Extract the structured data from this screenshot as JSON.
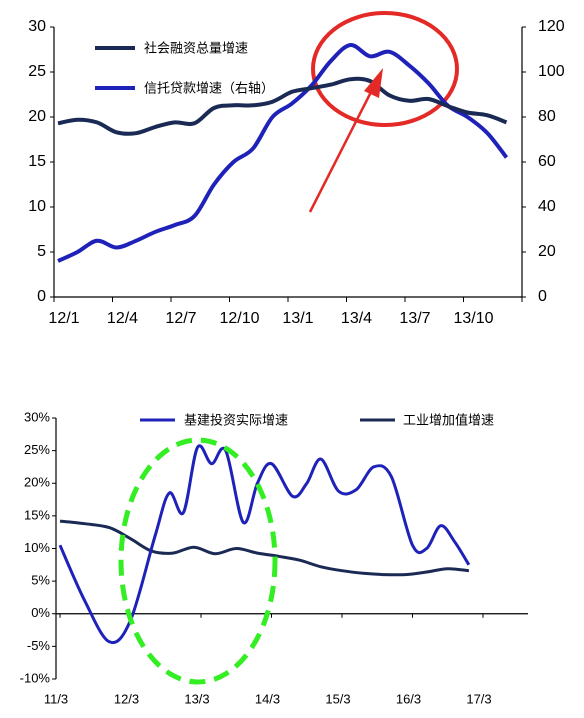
{
  "chart_data": [
    {
      "type": "line",
      "title": "",
      "x_tick_labels": [
        "12/1",
        "12/4",
        "12/7",
        "12/10",
        "13/1",
        "13/4",
        "13/7",
        "13/10"
      ],
      "y_left": {
        "lim": [
          0,
          30
        ],
        "ticks": [
          "0",
          "5",
          "10",
          "15",
          "20",
          "25",
          "30"
        ]
      },
      "y_right": {
        "lim": [
          0,
          120
        ],
        "ticks": [
          "0",
          "20",
          "40",
          "60",
          "80",
          "100",
          "120"
        ]
      },
      "legend_position": "top-left",
      "series": [
        {
          "name": "社会融资总量增速",
          "axis": "left",
          "color": "#1b2a55",
          "x": [
            "12/1",
            "12/2",
            "12/3",
            "12/4",
            "12/5",
            "12/6",
            "12/7",
            "12/8",
            "12/9",
            "12/10",
            "12/11",
            "12/12",
            "13/1",
            "13/2",
            "13/3",
            "13/4",
            "13/5",
            "13/6",
            "13/7",
            "13/8",
            "13/9",
            "13/10",
            "13/11",
            "13/12"
          ],
          "values": [
            19.3,
            19.7,
            19.4,
            18.3,
            18.2,
            18.9,
            19.4,
            19.3,
            21.0,
            21.3,
            21.3,
            21.7,
            22.8,
            23.2,
            23.6,
            24.2,
            24.0,
            22.4,
            21.8,
            22.0,
            21.2,
            20.5,
            20.2,
            19.4
          ]
        },
        {
          "name": "信托贷款增速（右轴）",
          "axis": "right",
          "color": "#1f22b8",
          "x": [
            "12/1",
            "12/2",
            "12/3",
            "12/4",
            "12/5",
            "12/6",
            "12/7",
            "12/8",
            "12/9",
            "12/10",
            "12/11",
            "12/12",
            "13/1",
            "13/2",
            "13/3",
            "13/4",
            "13/5",
            "13/6",
            "13/7",
            "13/8",
            "13/9",
            "13/10",
            "13/11",
            "13/12"
          ],
          "values": [
            16,
            20,
            25,
            22,
            25,
            29,
            32,
            36,
            50,
            60,
            66,
            80,
            86,
            94,
            105,
            112,
            107,
            109,
            103,
            95,
            85,
            80,
            73,
            62
          ]
        }
      ],
      "annotations": [
        "red ellipse around 13/3–13/7 peak",
        "red arrow pointing to peak"
      ]
    },
    {
      "type": "line",
      "title": "",
      "x_tick_labels": [
        "11/3",
        "12/3",
        "13/3",
        "14/3",
        "15/3",
        "16/3",
        "17/3"
      ],
      "y": {
        "lim": [
          -10,
          30
        ],
        "ticks": [
          "-10%",
          "-5%",
          "0%",
          "5%",
          "10%",
          "15%",
          "20%",
          "25%",
          "30%"
        ]
      },
      "legend_position": "top",
      "series": [
        {
          "name": "基建投资实际增速",
          "color": "#1f22b8",
          "points": [
            [
              0.0,
              10.5
            ],
            [
              0.35,
              2.0
            ],
            [
              0.7,
              -4.3
            ],
            [
              1.0,
              -1.0
            ],
            [
              1.35,
              12.0
            ],
            [
              1.55,
              18.5
            ],
            [
              1.75,
              15.5
            ],
            [
              1.95,
              25.5
            ],
            [
              2.15,
              23.0
            ],
            [
              2.35,
              25.0
            ],
            [
              2.6,
              14.0
            ],
            [
              2.8,
              20.0
            ],
            [
              3.0,
              23.0
            ],
            [
              3.3,
              18.0
            ],
            [
              3.5,
              20.0
            ],
            [
              3.7,
              23.7
            ],
            [
              3.95,
              18.8
            ],
            [
              4.2,
              19.0
            ],
            [
              4.45,
              22.5
            ],
            [
              4.7,
              21.0
            ],
            [
              5.0,
              10.5
            ],
            [
              5.2,
              10.0
            ],
            [
              5.4,
              13.5
            ],
            [
              5.6,
              11.0
            ],
            [
              5.8,
              7.5
            ]
          ]
        },
        {
          "name": "工业增加值增速",
          "color": "#1b2a55",
          "points": [
            [
              0.0,
              14.2
            ],
            [
              0.35,
              13.8
            ],
            [
              0.7,
              13.2
            ],
            [
              1.0,
              11.5
            ],
            [
              1.3,
              9.6
            ],
            [
              1.6,
              9.3
            ],
            [
              1.9,
              10.2
            ],
            [
              2.2,
              9.2
            ],
            [
              2.5,
              10.0
            ],
            [
              2.8,
              9.3
            ],
            [
              3.1,
              8.8
            ],
            [
              3.4,
              8.2
            ],
            [
              3.7,
              7.2
            ],
            [
              4.0,
              6.6
            ],
            [
              4.3,
              6.2
            ],
            [
              4.6,
              6.0
            ],
            [
              4.9,
              6.0
            ],
            [
              5.2,
              6.4
            ],
            [
              5.5,
              6.9
            ],
            [
              5.8,
              6.6
            ]
          ]
        }
      ],
      "annotations": [
        "green dashed ellipse around 12/3–14/3"
      ]
    }
  ]
}
